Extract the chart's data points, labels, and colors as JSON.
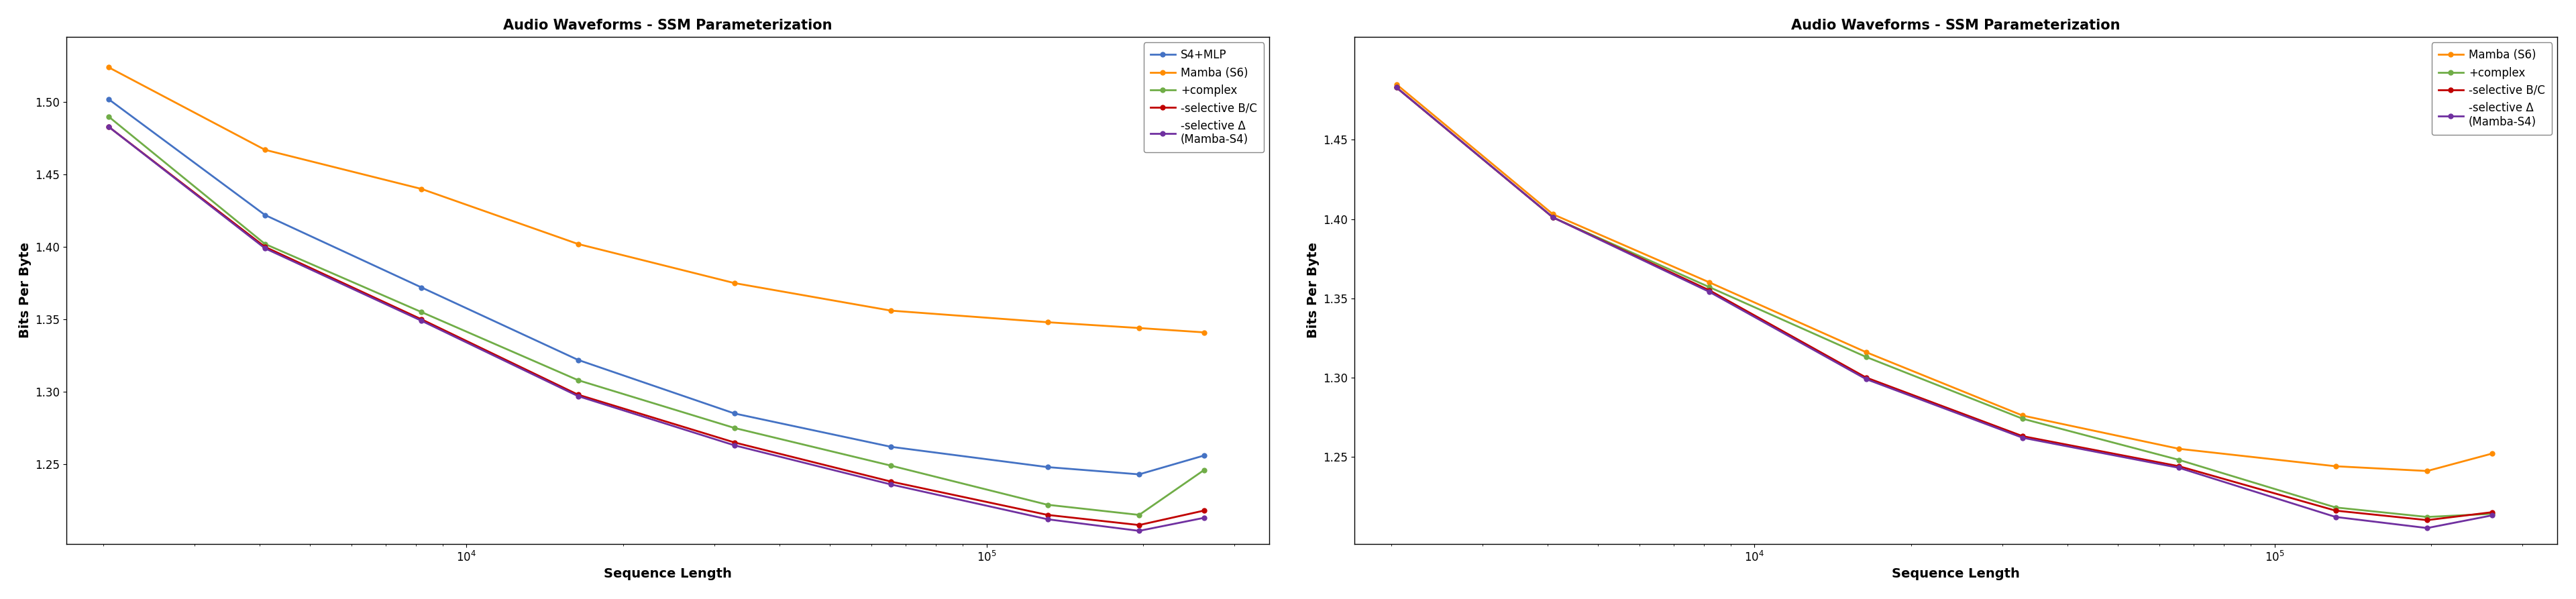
{
  "title": "Audio Waveforms - SSM Parameterization",
  "xlabel": "Sequence Length",
  "ylabel": "Bits Per Byte",
  "plot1": {
    "x": [
      2048,
      4096,
      8192,
      16384,
      32768,
      65536,
      131072,
      196608,
      262144
    ],
    "series": {
      "S4+MLP": {
        "color": "#4472C4",
        "y": [
          1.502,
          1.422,
          1.372,
          1.322,
          1.285,
          1.262,
          1.248,
          1.243,
          1.256
        ]
      },
      "Mamba (S6)": {
        "color": "#FF8C00",
        "y": [
          1.524,
          1.467,
          1.44,
          1.402,
          1.375,
          1.356,
          1.348,
          1.344,
          1.341
        ]
      },
      "+complex": {
        "color": "#70AD47",
        "y": [
          1.49,
          1.402,
          1.355,
          1.308,
          1.275,
          1.249,
          1.222,
          1.215,
          1.246
        ]
      },
      "-selective B/C": {
        "color": "#C00000",
        "y": [
          1.483,
          1.4,
          1.35,
          1.298,
          1.265,
          1.238,
          1.215,
          1.208,
          1.218
        ]
      },
      "-selective Δ\n(Mamba-S4)": {
        "color": "#7030A0",
        "y": [
          1.483,
          1.399,
          1.349,
          1.297,
          1.263,
          1.236,
          1.212,
          1.204,
          1.213
        ]
      }
    },
    "legend_order": [
      "S4+MLP",
      "Mamba (S6)",
      "+complex",
      "-selective B/C",
      "-selective Δ\n(Mamba-S4)"
    ],
    "ylim": [
      1.195,
      1.545
    ],
    "yticks": [
      1.25,
      1.3,
      1.35,
      1.4,
      1.45,
      1.5
    ]
  },
  "plot2": {
    "x": [
      2048,
      4096,
      8192,
      16384,
      32768,
      65536,
      131072,
      196608,
      262144
    ],
    "series": {
      "Mamba (S6)": {
        "color": "#FF8C00",
        "y": [
          1.485,
          1.403,
          1.36,
          1.316,
          1.276,
          1.255,
          1.244,
          1.241,
          1.252
        ]
      },
      "+complex": {
        "color": "#70AD47",
        "y": [
          1.483,
          1.401,
          1.357,
          1.313,
          1.274,
          1.248,
          1.218,
          1.212,
          1.214
        ]
      },
      "-selective B/C": {
        "color": "#C00000",
        "y": [
          1.483,
          1.401,
          1.355,
          1.3,
          1.263,
          1.244,
          1.216,
          1.21,
          1.215
        ]
      },
      "-selective Δ\n(Mamba-S4)": {
        "color": "#7030A0",
        "y": [
          1.483,
          1.401,
          1.354,
          1.299,
          1.262,
          1.243,
          1.212,
          1.205,
          1.213
        ]
      }
    },
    "legend_order": [
      "Mamba (S6)",
      "+complex",
      "-selective B/C",
      "-selective Δ\n(Mamba-S4)"
    ],
    "ylim": [
      1.195,
      1.515
    ],
    "yticks": [
      1.25,
      1.3,
      1.35,
      1.4,
      1.45
    ]
  },
  "background_color": "#FFFFFF",
  "title_fontsize": 15,
  "label_fontsize": 14,
  "tick_fontsize": 12,
  "legend_fontsize": 12,
  "linewidth": 2.0,
  "markersize": 5
}
